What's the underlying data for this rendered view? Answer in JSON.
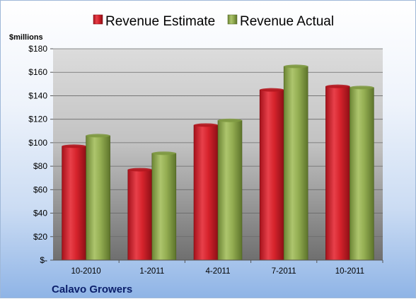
{
  "chart_data": {
    "type": "bar",
    "unit_label": "$millions",
    "categories": [
      "10-2010",
      "1-2011",
      "4-2011",
      "7-2011",
      "10-2011"
    ],
    "series": [
      {
        "name": "Revenue Estimate",
        "values": [
          97,
          77,
          115,
          145,
          148
        ],
        "color": "#d0202a"
      },
      {
        "name": "Revenue Actual",
        "values": [
          106,
          91,
          119,
          165,
          147
        ],
        "color": "#8faa4e"
      }
    ],
    "ylim": [
      0,
      180
    ],
    "yticks": [
      0,
      20,
      40,
      60,
      80,
      100,
      120,
      140,
      160,
      180
    ],
    "ytick_labels": [
      "$-",
      "$20",
      "$40",
      "$60",
      "$80",
      "$100",
      "$120",
      "$140",
      "$160",
      "$180"
    ],
    "grid": true,
    "legend_position": "top",
    "caption": "Calavo Growers"
  }
}
